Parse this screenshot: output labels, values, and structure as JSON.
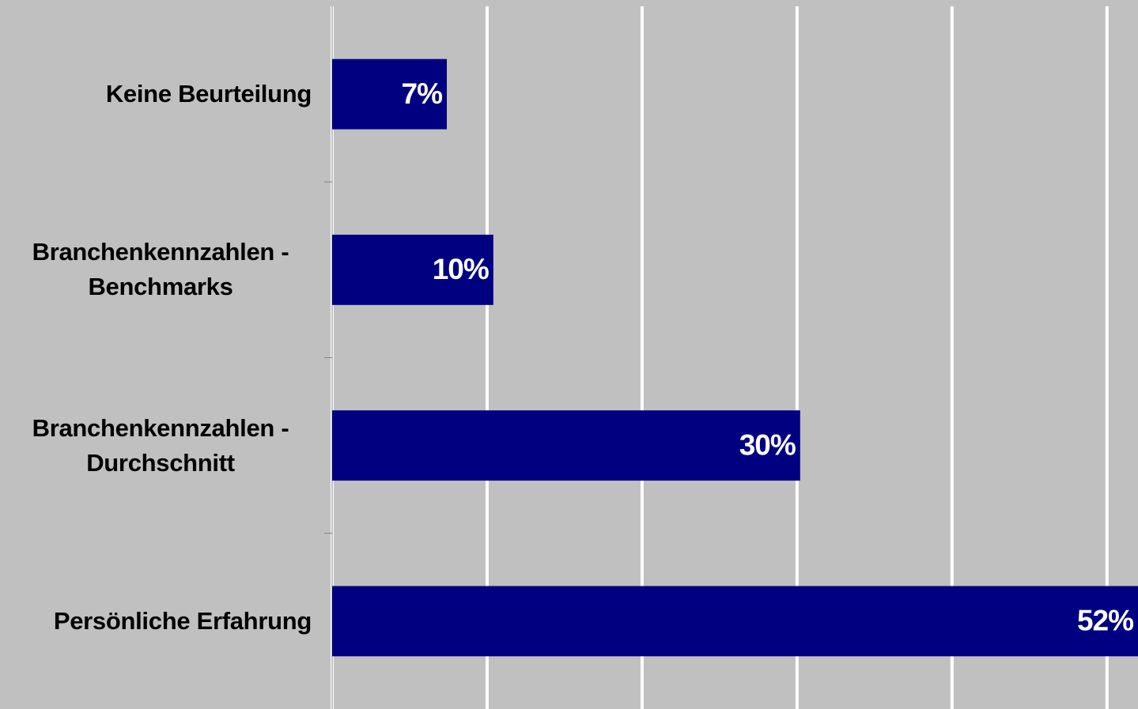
{
  "chart_data": {
    "type": "bar",
    "orientation": "horizontal",
    "categories": [
      "Keine Beurteilung",
      "Branchenkennzahlen - Benchmarks",
      "Branchenkennzahlen - Durchschnitt",
      "Persönliche Erfahrung"
    ],
    "values": [
      7.4,
      10.4,
      30.2,
      52
    ],
    "value_labels": [
      "7%",
      "10%",
      "30%",
      "52%"
    ],
    "color": "#000080",
    "xlim": [
      0,
      52
    ],
    "xticks": [
      0,
      10,
      20,
      30,
      40,
      50
    ],
    "grid": true
  }
}
